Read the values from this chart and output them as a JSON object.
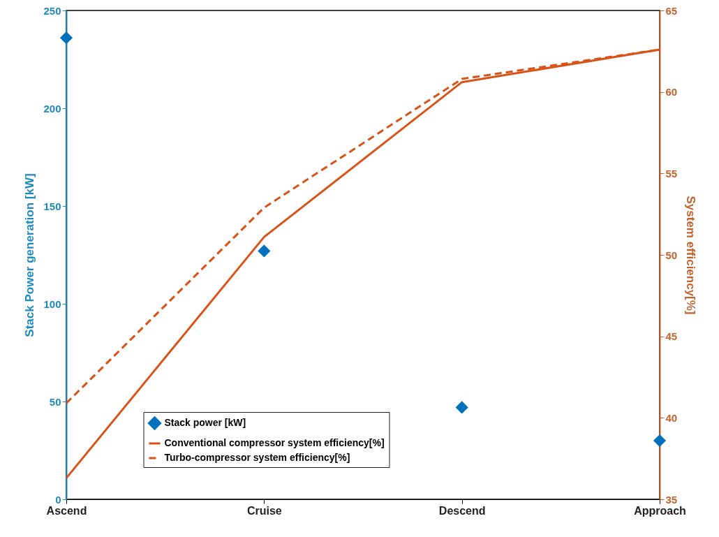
{
  "chart_data": {
    "type": "line",
    "categories": [
      "Ascend",
      "Cruise",
      "Descend",
      "Approach"
    ],
    "ylabel": "Stack Power generation [kW]",
    "y2label": "System efficiency[%]",
    "ylim": [
      0,
      250
    ],
    "yticks": [
      0,
      50,
      100,
      150,
      200,
      250
    ],
    "y2lim": [
      35,
      65
    ],
    "y2ticks": [
      35,
      40,
      45,
      50,
      55,
      60,
      65
    ],
    "grid": false,
    "legend": "bottom",
    "series": [
      {
        "name": "Stack power [kW]",
        "type": "scatter",
        "marker": "diamond",
        "color": "#0072bd",
        "values": [
          236,
          127,
          47,
          30
        ]
      },
      {
        "name": "Conventional compressor system efficiency[%]",
        "axis": "y2",
        "line_style": "solid",
        "marker": "none",
        "color": "#d95319",
        "values": [
          36.3,
          51.1,
          60.6,
          62.6
        ]
      },
      {
        "name": "Turbo-compressor system efficiency[%]",
        "axis": "y2",
        "line_style": "dashed",
        "marker": "none",
        "color": "#d95319",
        "values": [
          40.9,
          52.9,
          60.8,
          62.6
        ]
      }
    ]
  }
}
